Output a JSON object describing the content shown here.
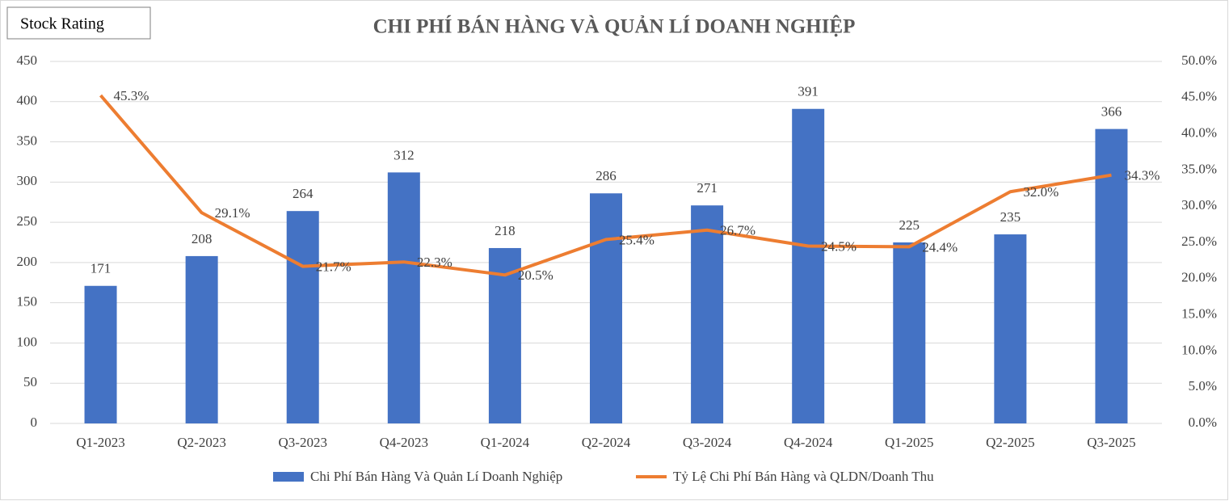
{
  "chart_data": {
    "type": "bar_line",
    "title": "CHI PHÍ BÁN HÀNG VÀ QUẢN LÍ DOANH NGHIỆP",
    "badge": "Stock Rating",
    "categories": [
      "Q1-2023",
      "Q2-2023",
      "Q3-2023",
      "Q4-2023",
      "Q1-2024",
      "Q2-2024",
      "Q3-2024",
      "Q4-2024",
      "Q1-2025",
      "Q2-2025",
      "Q3-2025"
    ],
    "series": [
      {
        "name": "Chi Phí Bán Hàng Và Quản Lí Doanh Nghiệp",
        "type": "bar",
        "color": "#4472c4",
        "values": [
          171,
          208,
          264,
          312,
          218,
          286,
          271,
          391,
          225,
          235,
          366
        ]
      },
      {
        "name": "Tỷ Lệ Chi Phí Bán Hàng và QLDN/Doanh Thu",
        "type": "line",
        "axis": "y2",
        "color": "#ed7d31",
        "values": [
          45.3,
          29.1,
          21.7,
          22.3,
          20.5,
          25.4,
          26.7,
          24.5,
          24.4,
          32.0,
          34.3
        ],
        "value_labels": [
          "45.3%",
          "29.1%",
          "21.7%",
          "22.3%",
          "20.5%",
          "25.4%",
          "26.7%",
          "24.5%",
          "24.4%",
          "32.0%",
          "34.3%"
        ]
      }
    ],
    "ylim": [
      0,
      450
    ],
    "yticks": [
      0,
      50,
      100,
      150,
      200,
      250,
      300,
      350,
      400,
      450
    ],
    "y2lim": [
      0,
      50
    ],
    "y2ticks": [
      {
        "value": 0,
        "label": "0.0%"
      },
      {
        "value": 5,
        "label": "5.0%"
      },
      {
        "value": 10,
        "label": "10.0%"
      },
      {
        "value": 15,
        "label": "15.0%"
      },
      {
        "value": 20,
        "label": "20.0%"
      },
      {
        "value": 25,
        "label": "25.0%"
      },
      {
        "value": 30,
        "label": "30.0%"
      },
      {
        "value": 35,
        "label": "35.0%"
      },
      {
        "value": 40,
        "label": "40.0%"
      },
      {
        "value": 45,
        "label": "45.0%"
      },
      {
        "value": 50,
        "label": "50.0%"
      }
    ],
    "grid": true,
    "legend": "bottom"
  }
}
